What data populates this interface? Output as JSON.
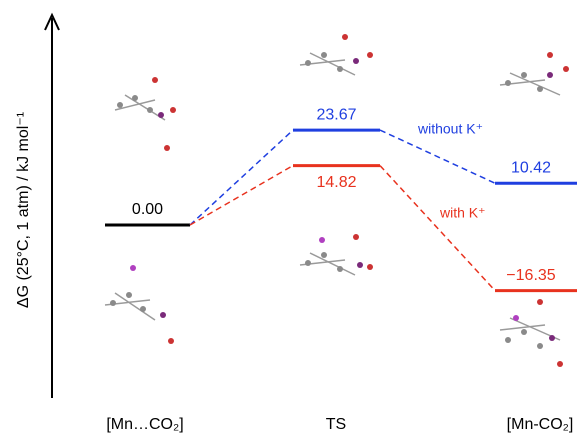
{
  "chart_data": {
    "type": "energy-profile",
    "y_label": "ΔG (25°C, 1 atm) / kJ mol⁻¹",
    "categories": [
      "[Mn…CO₂]",
      "TS",
      "[Mn-CO₂]"
    ],
    "baseline_color": "#000000",
    "series": [
      {
        "name": "without K⁺",
        "color": "#1f3fe0",
        "values": [
          0.0,
          23.67,
          10.42
        ],
        "value_labels": [
          "0.00",
          "23.67",
          "10.42"
        ]
      },
      {
        "name": "with K⁺",
        "color": "#e8321e",
        "values": [
          0.0,
          14.82,
          -16.35
        ],
        "value_labels": [
          null,
          "14.82",
          "−16.35"
        ]
      }
    ]
  }
}
